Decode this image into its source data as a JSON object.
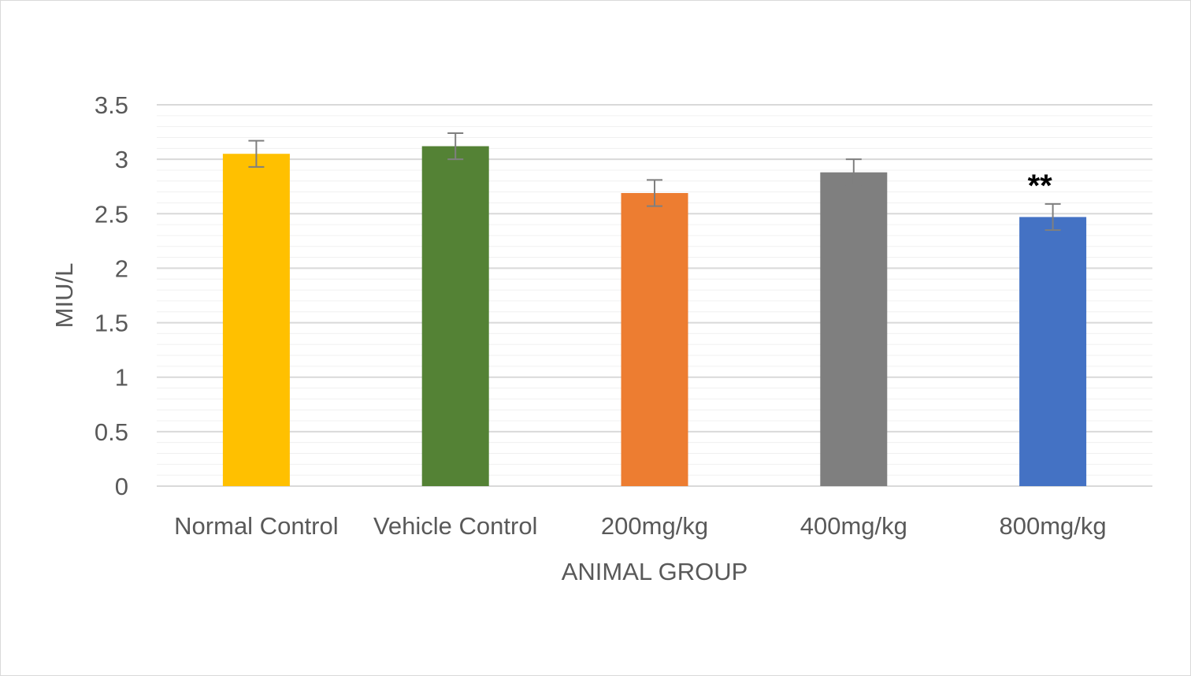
{
  "chart_data": {
    "type": "bar",
    "title": "",
    "xlabel": "ANIMAL GROUP",
    "ylabel": "MIU/L",
    "ylim": [
      0,
      3.5
    ],
    "y_ticks": [
      0,
      0.5,
      1,
      1.5,
      2,
      2.5,
      3,
      3.5
    ],
    "y_tick_labels": [
      "0",
      "0.5",
      "1",
      "1.5",
      "2",
      "2.5",
      "3",
      "3.5"
    ],
    "minor_step": 0.1,
    "grid": true,
    "legend": "none",
    "categories": [
      "Normal Control",
      "Vehicle Control",
      "200mg/kg",
      "400mg/kg",
      "800mg/kg"
    ],
    "values": [
      3.05,
      3.12,
      2.69,
      2.88,
      2.47
    ],
    "errors": [
      0.12,
      0.12,
      0.12,
      0.12,
      0.12
    ],
    "colors": [
      "#FFC000",
      "#548235",
      "#ED7D31",
      "#7F7F7F",
      "#4472C4"
    ],
    "annotations": [
      {
        "category": "800mg/kg",
        "text": "**"
      }
    ]
  }
}
